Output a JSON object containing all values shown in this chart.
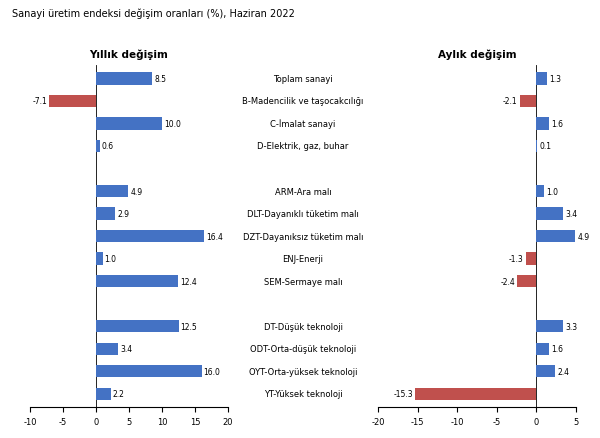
{
  "title": "Sanayi üretim endeksi değişim oranları (%), Haziran 2022",
  "left_title": "Yıllık değişim",
  "right_title": "Aylık değişim",
  "categories": [
    "Toplam sanayi",
    "B-Madencilik ve taşocakcılığı",
    "C-İmalat sanayi",
    "D-Elektrik, gaz, buhar",
    "",
    "ARM-Ara malı",
    "DLT-Dayanıklı tüketim malı",
    "DZT-Dayanıksız tüketim malı",
    "ENJ-Enerji",
    "SEM-Sermaye malı",
    "",
    "DT-Düşük teknoloji",
    "ODT-Orta-düşük teknoloji",
    "OYT-Orta-yüksek teknoloji",
    "YT-Yüksek teknoloji"
  ],
  "annual_values": [
    8.5,
    -7.1,
    10.0,
    0.6,
    null,
    4.9,
    2.9,
    16.4,
    1.0,
    12.4,
    null,
    12.5,
    3.4,
    16.0,
    2.2
  ],
  "monthly_values": [
    1.3,
    -2.1,
    1.6,
    0.1,
    null,
    1.0,
    3.4,
    4.9,
    -1.3,
    -2.4,
    null,
    3.3,
    1.6,
    2.4,
    -15.3
  ],
  "annual_xlim": [
    -10,
    20
  ],
  "monthly_xlim": [
    -20,
    5
  ],
  "annual_xticks": [
    -10,
    -5,
    0,
    5,
    10,
    15,
    20
  ],
  "monthly_xticks": [
    -20,
    -15,
    -10,
    -5,
    0,
    5
  ],
  "blue_color": "#4472C4",
  "red_color": "#C0504D",
  "bar_height": 0.55,
  "fontsize_title": 7.0,
  "fontsize_labels": 6.0,
  "fontsize_values": 5.5,
  "fontsize_subtitle": 7.5
}
